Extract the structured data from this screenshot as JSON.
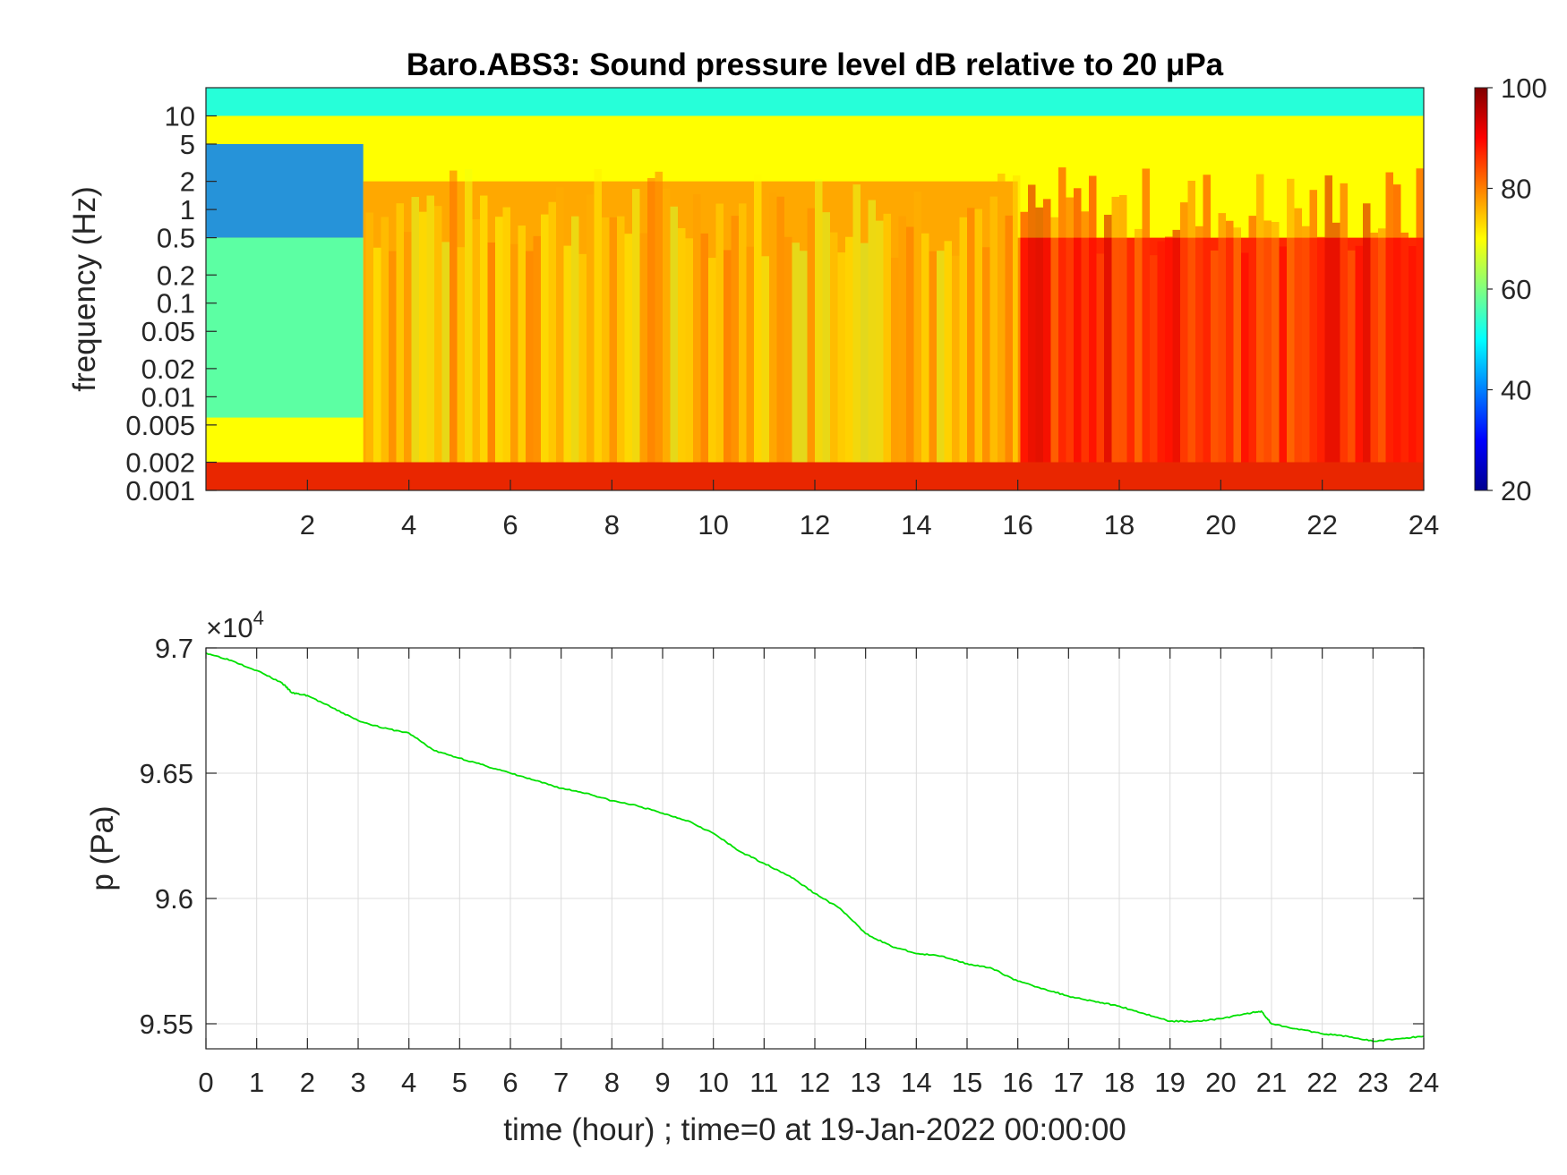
{
  "chart_data": [
    {
      "type": "heatmap",
      "title": "Baro.ABS3: Sound pressure level dB relative to 20 μPa",
      "ylabel": "frequency (Hz)",
      "x_ticks": [
        2,
        4,
        6,
        8,
        10,
        12,
        14,
        16,
        18,
        20,
        22,
        24
      ],
      "xlim": [
        0,
        24
      ],
      "y_scale": "log",
      "ylim": [
        0.001,
        20
      ],
      "y_ticks": [
        0.001,
        0.002,
        0.005,
        0.01,
        0.02,
        0.05,
        0.1,
        0.2,
        0.5,
        1,
        2,
        5,
        10
      ],
      "y_tick_labels": [
        "0.001",
        "0.002",
        "0.005",
        "0.01",
        "0.02",
        "0.05",
        "0.1",
        "0.2",
        "0.5",
        "1",
        "2",
        "5",
        "10"
      ],
      "colormap": "jet",
      "colorbar": {
        "range": [
          20,
          100
        ],
        "ticks": [
          20,
          40,
          60,
          80,
          100
        ]
      },
      "regions": [
        {
          "x": [
            0,
            3.1
          ],
          "y": [
            0.5,
            5
          ],
          "level_db": 40
        },
        {
          "x": [
            0,
            3.1
          ],
          "y": [
            0.006,
            0.5
          ],
          "level_db": 55
        },
        {
          "x": [
            3.1,
            16
          ],
          "y": [
            0.002,
            2
          ],
          "level_db": 78
        },
        {
          "x": [
            16,
            24
          ],
          "y": [
            0.002,
            0.5
          ],
          "level_db": 90
        },
        {
          "x": [
            0,
            24
          ],
          "y": [
            10,
            20
          ],
          "level_db": 50
        },
        {
          "x": [
            0,
            24
          ],
          "y": [
            0.001,
            0.002
          ],
          "level_db": 92
        }
      ],
      "grid": false
    },
    {
      "type": "line",
      "xlabel": "time (hour) ; time=0 at 19-Jan-2022 00:00:00",
      "ylabel": "p (Pa)",
      "xlim": [
        0,
        24
      ],
      "ylim": [
        95400,
        97000
      ],
      "x_ticks": [
        0,
        1,
        2,
        3,
        4,
        5,
        6,
        7,
        8,
        9,
        10,
        11,
        12,
        13,
        14,
        15,
        16,
        17,
        18,
        19,
        20,
        21,
        22,
        23,
        24
      ],
      "y_ticks": [
        95500,
        96000,
        96500,
        97000
      ],
      "y_tick_labels": [
        "9.55",
        "9.6",
        "9.65",
        "9.7"
      ],
      "y_exponent_label": "×10",
      "y_exponent_power": "4",
      "grid": true,
      "line_color": "#00e000",
      "series": [
        {
          "x": [
            0,
            0.5,
            1,
            1.5,
            1.7,
            2,
            2.5,
            3,
            3.5,
            4,
            4.5,
            5,
            5.5,
            6,
            6.5,
            7,
            7.5,
            8,
            8.5,
            9,
            9.5,
            10,
            10.5,
            11,
            11.5,
            12,
            12.5,
            13,
            13.5,
            14,
            14.5,
            15,
            15.5,
            16,
            16.5,
            17,
            17.5,
            18,
            18.5,
            19,
            19.5,
            20,
            20.5,
            20.8,
            21,
            21.5,
            22,
            22.5,
            23,
            23.5,
            24
          ],
          "y": [
            96980,
            96950,
            96910,
            96860,
            96820,
            96810,
            96760,
            96710,
            96680,
            96660,
            96590,
            96560,
            96530,
            96500,
            96470,
            96440,
            96420,
            96390,
            96370,
            96340,
            96310,
            96260,
            96190,
            96140,
            96090,
            96020,
            95960,
            95860,
            95810,
            95780,
            95770,
            95740,
            95720,
            95670,
            95640,
            95610,
            95590,
            95570,
            95540,
            95510,
            95510,
            95520,
            95540,
            95550,
            95500,
            95480,
            95460,
            95450,
            95430,
            95440,
            95450
          ]
        }
      ]
    }
  ]
}
